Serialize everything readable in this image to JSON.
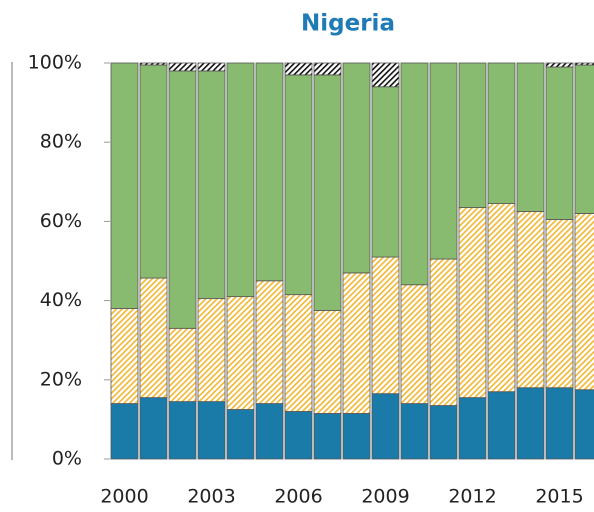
{
  "chart_data": {
    "type": "stacked_bar",
    "title": "Nigeria",
    "categories": [
      "2000",
      null,
      null,
      "2003",
      null,
      null,
      "2006",
      null,
      null,
      "2009",
      null,
      null,
      "2012",
      null,
      null,
      "2015",
      null
    ],
    "series": [
      {
        "color": "#1a7aa8",
        "hatch": false,
        "values": [
          14,
          15.5,
          14.5,
          14.5,
          12.5,
          14,
          12,
          11.5,
          11.5,
          16.5,
          14,
          13.5,
          15.5,
          17,
          18,
          18,
          17.5
        ]
      },
      {
        "color": "#f2b630",
        "hatch": true,
        "values": [
          24,
          30.2,
          18.5,
          26,
          28.5,
          31,
          29.5,
          26,
          35.5,
          34.5,
          30,
          37,
          48,
          47.5,
          44.5,
          42.5,
          44.5
        ]
      },
      {
        "color": "#88bb6f",
        "hatch": false,
        "values": [
          62,
          53.8,
          65,
          57.5,
          59,
          55,
          55.5,
          59.5,
          53,
          43,
          56,
          49.5,
          36.5,
          35.5,
          37.5,
          38.5,
          37.5
        ]
      },
      {
        "color": "#111111",
        "hatch": true,
        "values": [
          0,
          0.5,
          2,
          2,
          0,
          0,
          3,
          3,
          0,
          6,
          0,
          0,
          0,
          0,
          0,
          1,
          0.5
        ]
      }
    ],
    "ylim": [
      0,
      100
    ],
    "yticks": [
      {
        "value": 0,
        "label": "0%"
      },
      {
        "value": 20,
        "label": "20%"
      },
      {
        "value": 40,
        "label": "40%"
      },
      {
        "value": 60,
        "label": "60%"
      },
      {
        "value": 80,
        "label": "80%"
      },
      {
        "value": 100,
        "label": "100%"
      }
    ]
  }
}
